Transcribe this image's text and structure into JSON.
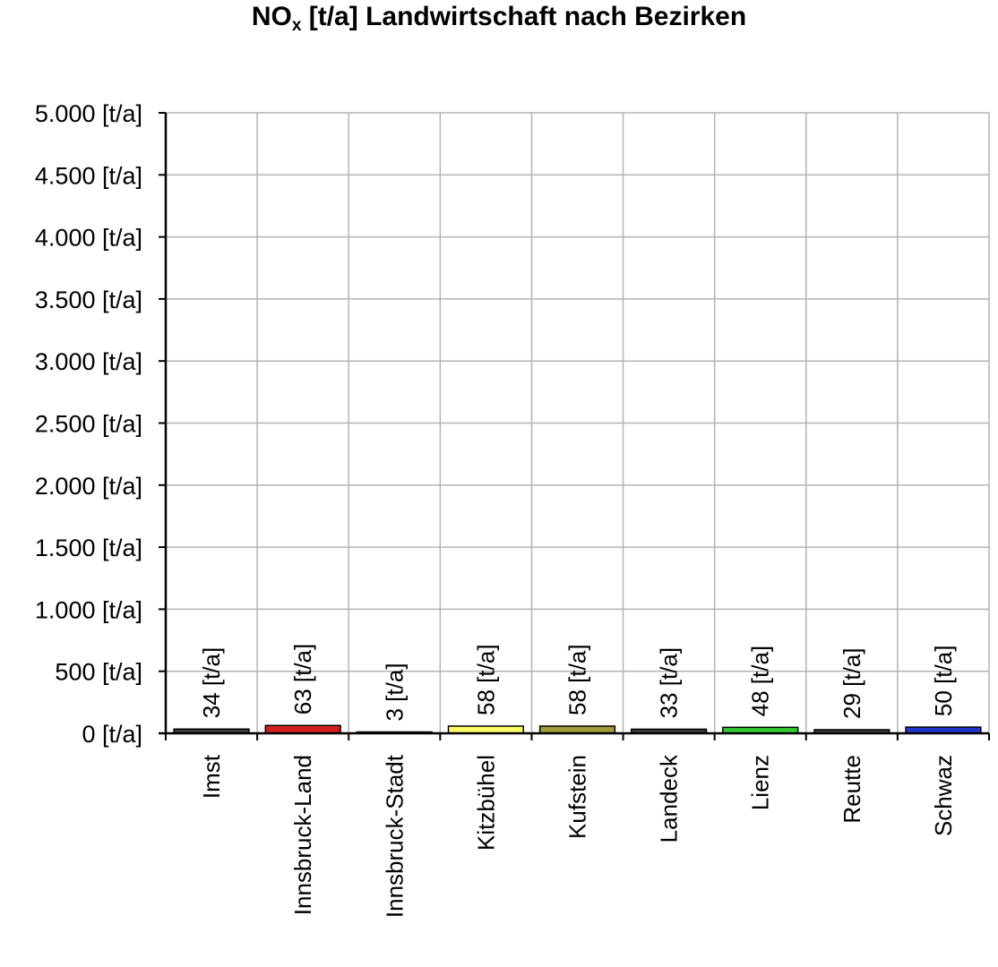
{
  "chart_data": {
    "type": "bar",
    "title": {
      "main": "NO",
      "sub": "x",
      "rest": " [t/a] Landwirtschaft nach Bezirken"
    },
    "categories": [
      "Imst",
      "Innsbruck-Land",
      "Innsbruck-Stadt",
      "Kitzbühel",
      "Kufstein",
      "Landeck",
      "Lienz",
      "Reutte",
      "Schwaz"
    ],
    "values": [
      34,
      63,
      3,
      58,
      58,
      33,
      48,
      29,
      50
    ],
    "data_labels": [
      "34 [t/a]",
      "63 [t/a]",
      "3 [t/a]",
      "58 [t/a]",
      "58 [t/a]",
      "33 [t/a]",
      "48 [t/a]",
      "29 [t/a]",
      "50 [t/a]"
    ],
    "bar_colors": [
      "#404040",
      "#d42020",
      "#ffffff",
      "#ffff66",
      "#a09a3c",
      "#404040",
      "#33cc33",
      "#404040",
      "#2233cc"
    ],
    "ylim": [
      0,
      5000
    ],
    "yticks": [
      0,
      500,
      1000,
      1500,
      2000,
      2500,
      3000,
      3500,
      4000,
      4500,
      5000
    ],
    "ytick_labels": [
      "0 [t/a]",
      "500 [t/a]",
      "1.000 [t/a]",
      "1.500 [t/a]",
      "2.000 [t/a]",
      "2.500 [t/a]",
      "3.000 [t/a]",
      "3.500 [t/a]",
      "4.000 [t/a]",
      "4.500 [t/a]",
      "5.000 [t/a]"
    ],
    "grid": true,
    "legend": "none"
  }
}
